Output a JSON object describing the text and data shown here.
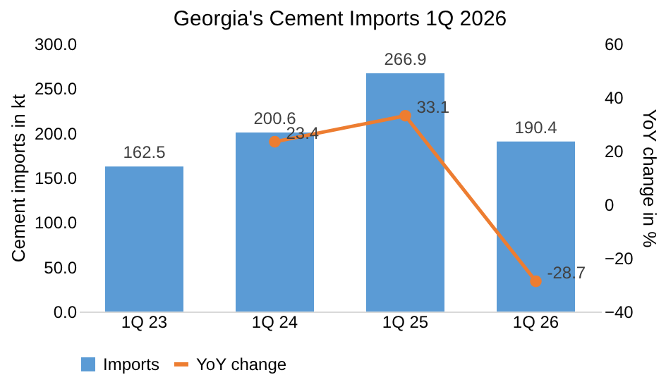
{
  "chart_data": {
    "type": "bar",
    "title": "Georgia's Cement Imports 1Q 2026",
    "ylabel": "Cement imports in kt",
    "y2label": "YoY change in %",
    "categories": [
      "1Q 23",
      "1Q 24",
      "1Q 25",
      "1Q 26"
    ],
    "series": [
      {
        "name": "Imports",
        "color": "#5b9bd5",
        "values": [
          162.5,
          200.6,
          266.9,
          190.4
        ]
      },
      {
        "name": "YoY change",
        "type": "line",
        "axis": "y2",
        "color": "#ed7d31",
        "marker": "circle",
        "values": [
          null,
          23.4,
          33.1,
          -28.7
        ]
      }
    ],
    "ylim": [
      0,
      300
    ],
    "yticks": [
      {
        "value": 0,
        "label": "0.0"
      },
      {
        "value": 50,
        "label": "50.0"
      },
      {
        "value": 100,
        "label": "100.0"
      },
      {
        "value": 150,
        "label": "150.0"
      },
      {
        "value": 200,
        "label": "200.0"
      },
      {
        "value": 250,
        "label": "250.0"
      },
      {
        "value": 300,
        "label": "300.0"
      }
    ],
    "y2lim": [
      -40,
      60
    ],
    "y2ticks": [
      -40,
      -20,
      0,
      20,
      40,
      60
    ],
    "data_labels": true,
    "legend": "bottom",
    "grid": false
  }
}
